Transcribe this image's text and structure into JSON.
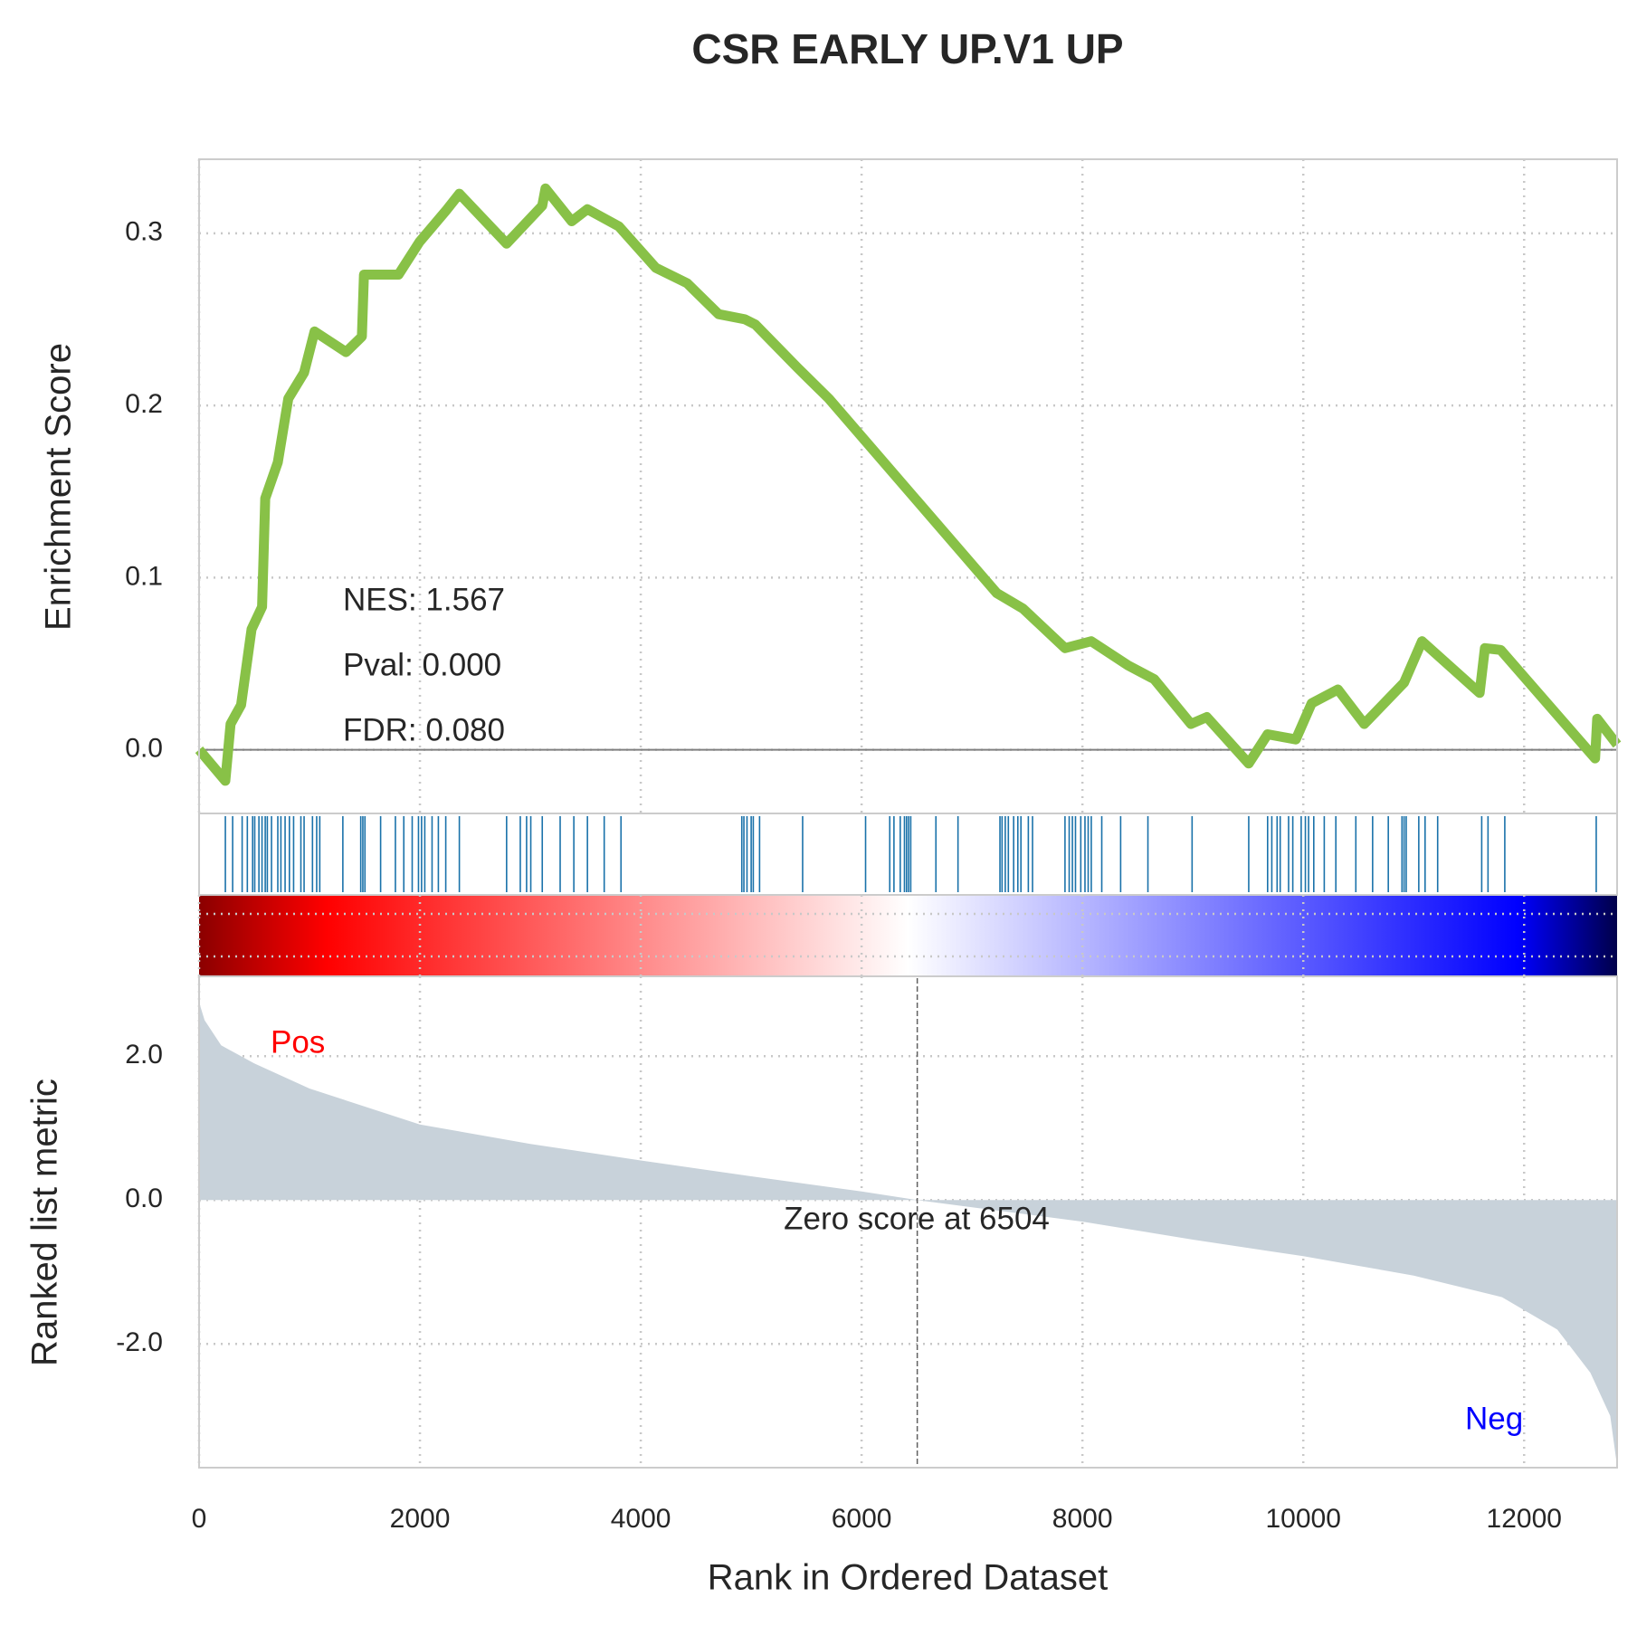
{
  "chart_data": [
    {
      "type": "line",
      "title": "CSR EARLY UP.V1 UP",
      "ylabel": "Enrichment Score",
      "color": "#88c147",
      "x": [
        0,
        238,
        285,
        380,
        475,
        570,
        599,
        713,
        808,
        951,
        1046,
        1331,
        1474,
        1493,
        1806,
        1996,
        2234,
        2357,
        2785,
        3108,
        3137,
        3375,
        3517,
        3802,
        4135,
        4420,
        4705,
        4943,
        5038,
        5418,
        5703,
        7224,
        7462,
        7842,
        8080,
        8413,
        8650,
        8983,
        9126,
        9506,
        9677,
        9933,
        10076,
        10314,
        10552,
        10913,
        11075,
        11597,
        11645,
        11787,
        12643,
        12662,
        12842
      ],
      "values": [
        0,
        -0.018,
        0.015,
        0.026,
        0.07,
        0.083,
        0.146,
        0.167,
        0.204,
        0.219,
        0.243,
        0.231,
        0.24,
        0.276,
        0.276,
        0.295,
        0.313,
        0.323,
        0.294,
        0.316,
        0.326,
        0.307,
        0.314,
        0.304,
        0.28,
        0.271,
        0.253,
        0.25,
        0.247,
        0.222,
        0.204,
        0.091,
        0.082,
        0.059,
        0.063,
        0.049,
        0.041,
        0.015,
        0.019,
        -0.008,
        0.009,
        0.006,
        0.027,
        0.035,
        0.015,
        0.039,
        0.063,
        0.033,
        0.059,
        0.058,
        -0.005,
        0.018,
        0.003
      ],
      "xlim": [
        0,
        12842
      ],
      "ylim": [
        -0.037,
        0.343
      ],
      "yticks": [
        {
          "value": 0,
          "label": "0.0"
        },
        0.1,
        0.2,
        0.3
      ],
      "xticks": [
        0,
        2000,
        4000,
        6000,
        8000,
        10000,
        12000
      ],
      "annotations": [
        "NES: 1.567",
        "Pval: 0.000",
        "FDR: 0.080"
      ],
      "grid": true
    },
    {
      "type": "rug",
      "color": "#1a72aa",
      "x": [
        238,
        304,
        390,
        437,
        485,
        504,
        542,
        570,
        599,
        618,
        656,
        713,
        741,
        779,
        818,
        856,
        922,
        951,
        1027,
        1065,
        1093,
        1302,
        1464,
        1483,
        1502,
        1644,
        1778,
        1854,
        1930,
        1987,
        2015,
        2044,
        2110,
        2167,
        2234,
        2357,
        2785,
        2909,
        2966,
        3004,
        3108,
        3270,
        3394,
        3517,
        3669,
        3821,
        4915,
        4934,
        4962,
        5000,
        5019,
        5076,
        5466,
        6036,
        6255,
        6293,
        6350,
        6388,
        6407,
        6426,
        6445,
        6673,
        6873,
        7253,
        7272,
        7301,
        7329,
        7377,
        7415,
        7443,
        7510,
        7548,
        7842,
        7880,
        7909,
        7937,
        7985,
        8023,
        8052,
        8080,
        8175,
        8346,
        8593,
        8993,
        9506,
        9677,
        9715,
        9763,
        9791,
        9867,
        9905,
        9981,
        10019,
        10048,
        10095,
        10190,
        10295,
        10476,
        10628,
        10770,
        10894,
        10913,
        10932,
        11046,
        11103,
        11217,
        11616,
        11673,
        11825,
        12653
      ]
    },
    {
      "type": "area",
      "ylabel": "Ranked list metric",
      "xlabel": "Rank in Ordered Dataset",
      "color": "#c8d2da",
      "x": [
        0,
        50,
        200,
        500,
        1000,
        2000,
        3000,
        4000,
        5000,
        6000,
        6504,
        7000,
        8000,
        9000,
        10000,
        11000,
        11800,
        12300,
        12600,
        12780,
        12842
      ],
      "values": [
        2.75,
        2.5,
        2.15,
        1.9,
        1.55,
        1.05,
        0.78,
        0.55,
        0.33,
        0.12,
        0,
        -0.1,
        -0.3,
        -0.55,
        -0.78,
        -1.05,
        -1.35,
        -1.8,
        -2.4,
        -3.0,
        -3.7
      ],
      "ylim": [
        -3.72,
        3.11
      ],
      "yticks": [
        {
          "value": 2,
          "label": "2.0"
        },
        {
          "value": 0,
          "label": "0.0"
        },
        {
          "value": -2,
          "label": "-2.0"
        }
      ],
      "zero_score_rank": 6504,
      "zero_score_label": "Zero score at 6504",
      "pos_label": "Pos",
      "pos_color": "#ff0000",
      "neg_label": "Neg",
      "neg_color": "#0000ff",
      "grid": true
    }
  ]
}
